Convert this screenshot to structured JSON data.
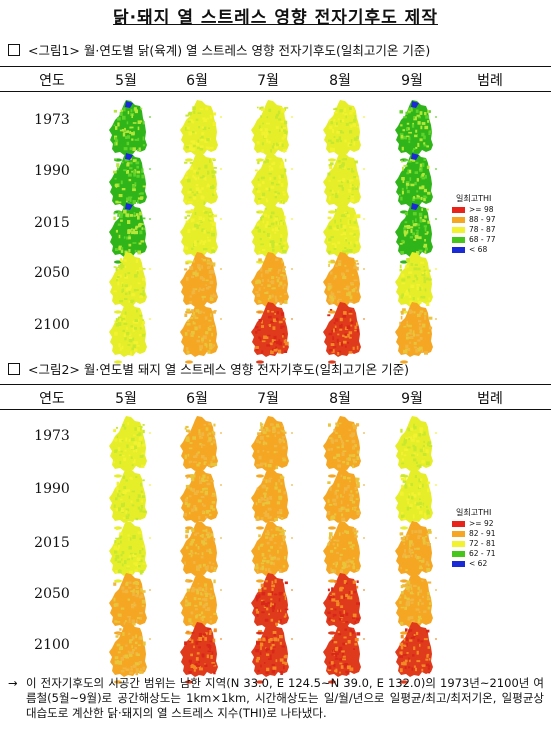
{
  "title": "닭·돼지 열 스트레스 영향 전자기후도 제작",
  "header": {
    "year_label": "연도",
    "months": [
      "5월",
      "6월",
      "7월",
      "8월",
      "9월"
    ],
    "legend_label": "범례"
  },
  "years": [
    "1973",
    "1990",
    "2015",
    "2050",
    "2100"
  ],
  "section1": {
    "title": "<그림1> 월·연도별 닭(육계) 열 스트레스 영향 전자기후도(일최고기온 기준)",
    "legend": {
      "title": "일최고THI",
      "items": [
        {
          "label": ">= 98",
          "color": "#e8231a"
        },
        {
          "label": "88 - 97",
          "color": "#f5a623"
        },
        {
          "label": "78 - 87",
          "color": "#f2f230"
        },
        {
          "label": "68 - 77",
          "color": "#46c61a"
        },
        {
          "label": "< 68",
          "color": "#1a2bd6"
        }
      ]
    },
    "maps": [
      [
        "green",
        "yellow",
        "yellow",
        "yellow",
        "green"
      ],
      [
        "green",
        "yellow",
        "yellow",
        "yellow",
        "green"
      ],
      [
        "green",
        "yellow",
        "yellow",
        "yellow",
        "green"
      ],
      [
        "yellow",
        "orange",
        "orange",
        "orange",
        "yellow"
      ],
      [
        "yellow",
        "orange",
        "red",
        "red",
        "orange"
      ]
    ]
  },
  "section2": {
    "title": "<그림2> 월·연도별 돼지 열 스트레스 영향 전자기후도(일최고기온 기준)",
    "legend": {
      "title": "일최고THI",
      "items": [
        {
          "label": ">= 92",
          "color": "#e8231a"
        },
        {
          "label": "82 - 91",
          "color": "#f5a623"
        },
        {
          "label": "72 - 81",
          "color": "#f2f230"
        },
        {
          "label": "62 - 71",
          "color": "#46c61a"
        },
        {
          "label": "< 62",
          "color": "#1a2bd6"
        }
      ]
    },
    "maps": [
      [
        "yellow",
        "orange",
        "orange",
        "orange",
        "yellow"
      ],
      [
        "yellow",
        "orange",
        "orange",
        "orange",
        "yellow"
      ],
      [
        "yellow",
        "orange",
        "orange",
        "orange",
        "orange"
      ],
      [
        "orange",
        "orange",
        "red",
        "red",
        "orange"
      ],
      [
        "orange",
        "red",
        "red",
        "red",
        "red"
      ]
    ]
  },
  "footnote": {
    "arrow": "→",
    "text": "이 전자기후도의 시공간 범위는 남한 지역(N 33.0, E 124.5~N 39.0, E 132.0)의 1973년~2100년 여름철(5월~9월)로 공간해상도는 1km×1km, 시간해상도는 일/월/년으로 일평균/최고/최저기온, 일평균상대습도로 계산한 닭·돼지의 열 스트레스 지수(THI)로 나타냈다."
  }
}
